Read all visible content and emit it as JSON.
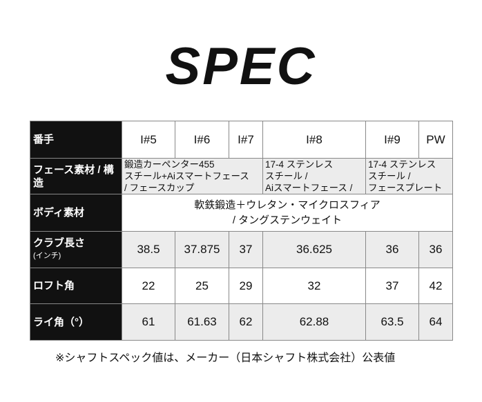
{
  "title": "SPEC",
  "columns": [
    "I#5",
    "I#6",
    "I#7",
    "I#8",
    "I#9",
    "PW"
  ],
  "rows": {
    "number_label": "番手",
    "face_label": "フェース素材 / 構造",
    "face": [
      [
        "鍛造カーペンター455",
        "スチール+Aiスマートフェース",
        "/ フェースカップ"
      ],
      [
        "17-4 ステンレス",
        "スチール /",
        "Aiスマートフェース /"
      ],
      [
        "17-4 ステンレス",
        "スチール /",
        "フェースプレート"
      ]
    ],
    "body_label": "ボディ素材",
    "body": [
      "軟鉄鍛造＋ウレタン・マイクロスフィア",
      "/ タングステンウェイト"
    ],
    "length_label": "クラブ長さ",
    "length_unit": "(インチ)",
    "length": [
      "38.5",
      "37.875",
      "37",
      "36.625",
      "36",
      "36"
    ],
    "loft_label": "ロフト角",
    "loft": [
      "22",
      "25",
      "29",
      "32",
      "37",
      "42"
    ],
    "lie_label": "ライ角（°）",
    "lie": [
      "61",
      "61.63",
      "62",
      "62.88",
      "63.5",
      "64"
    ]
  },
  "note": "※シャフトスペック値は、メーカー（日本シャフト株式会社）公表値"
}
